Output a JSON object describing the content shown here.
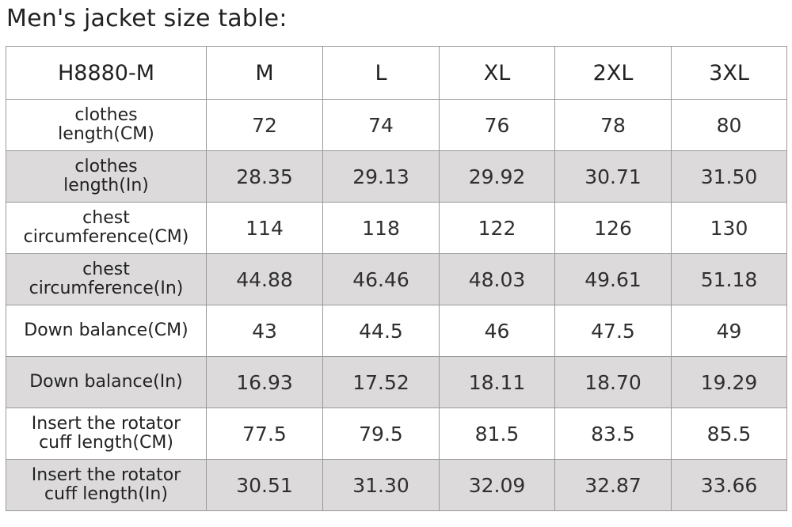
{
  "title": "Men's jacket size table:",
  "header": [
    "H8880-M",
    "M",
    "L",
    "XL",
    "2XL",
    "3XL"
  ],
  "rows": [
    {
      "label": [
        "clothes",
        "length(CM)"
      ],
      "values": [
        "72",
        "74",
        "76",
        "78",
        "80"
      ],
      "shaded": false
    },
    {
      "label": [
        "clothes",
        "length(In)"
      ],
      "values": [
        "28.35",
        "29.13",
        "29.92",
        "30.71",
        "31.50"
      ],
      "shaded": true
    },
    {
      "label": [
        "chest",
        "circumference(CM)"
      ],
      "values": [
        "114",
        "118",
        "122",
        "126",
        "130"
      ],
      "shaded": false
    },
    {
      "label": [
        "chest",
        "circumference(In)"
      ],
      "values": [
        "44.88",
        "46.46",
        "48.03",
        "49.61",
        "51.18"
      ],
      "shaded": true
    },
    {
      "label": [
        "Down balance(CM)"
      ],
      "values": [
        "43",
        "44.5",
        "46",
        "47.5",
        "49"
      ],
      "shaded": false
    },
    {
      "label": [
        "Down balance(In)"
      ],
      "values": [
        "16.93",
        "17.52",
        "18.11",
        "18.70",
        "19.29"
      ],
      "shaded": true
    },
    {
      "label": [
        "Insert the rotator",
        "cuff length(CM)"
      ],
      "values": [
        "77.5",
        "79.5",
        "81.5",
        "83.5",
        "85.5"
      ],
      "shaded": false
    },
    {
      "label": [
        "Insert the rotator",
        "cuff length(In)"
      ],
      "values": [
        "30.51",
        "31.30",
        "32.09",
        "32.87",
        "33.66"
      ],
      "shaded": true
    }
  ],
  "colors": {
    "shade": "#dcdada",
    "border": "#9a9a9a",
    "text": "#2b2b2b"
  }
}
